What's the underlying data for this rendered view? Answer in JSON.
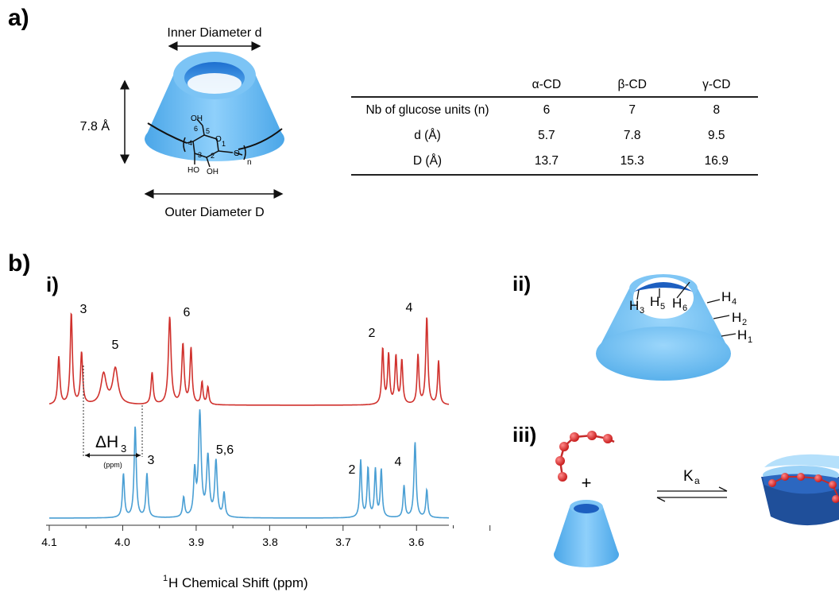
{
  "panel_a": {
    "label": "a)",
    "inner_diameter_label": "Inner Diameter d",
    "outer_diameter_label": "Outer Diameter D",
    "height_label": "7.8 Å",
    "glucose_struct": {
      "oh_top": "OH",
      "n6": "6",
      "n5": "5",
      "n4": "4",
      "n3": "3",
      "n2": "2",
      "n1": "1",
      "o_ring": "O",
      "o_link": "O",
      "oh3": "HO",
      "oh2": "OH",
      "n_sub": "n"
    },
    "table": {
      "columns": [
        "α-CD",
        "β-CD",
        "γ-CD"
      ],
      "rows": [
        {
          "label": "Nb of glucose units (n)",
          "values": [
            "6",
            "7",
            "8"
          ]
        },
        {
          "label": "d (Å)",
          "values": [
            "5.7",
            "7.8",
            "9.5"
          ]
        },
        {
          "label": "D (Å)",
          "values": [
            "13.7",
            "15.3",
            "16.9"
          ]
        }
      ]
    }
  },
  "panel_b": {
    "label": "b)",
    "sub_i": "i)",
    "sub_ii": "ii)",
    "sub_iii": "iii)",
    "nmr": {
      "top_colors": {
        "top": "#d0312d",
        "bottom": "#4a9fd4"
      },
      "top_peaks_labels": {
        "p3": "3",
        "p5": "5",
        "p6": "6",
        "p2": "2",
        "p4": "4"
      },
      "bottom_peaks_labels": {
        "p3": "3",
        "p56": "5,6",
        "p2": "2",
        "p4": "4"
      },
      "delta_label": "ΔH",
      "delta_sub": "3",
      "delta_unit": "(ppm)",
      "xaxis_ticks": [
        "4.1",
        "4.0",
        "3.9",
        "3.8",
        "3.7",
        "3.6"
      ],
      "xlabel_sup": "1",
      "xlabel": "H Chemical Shift (ppm)"
    },
    "cone_labels": {
      "h3": "H",
      "h3s": "3",
      "h5": "H",
      "h5s": "5",
      "h6": "H",
      "h6s": "6",
      "h4": "H",
      "h4s": "4",
      "h2": "H",
      "h2s": "2",
      "h1": "H",
      "h1s": "1"
    },
    "equilibrium": {
      "plus": "+",
      "k": "K",
      "k_sub": "a"
    }
  }
}
